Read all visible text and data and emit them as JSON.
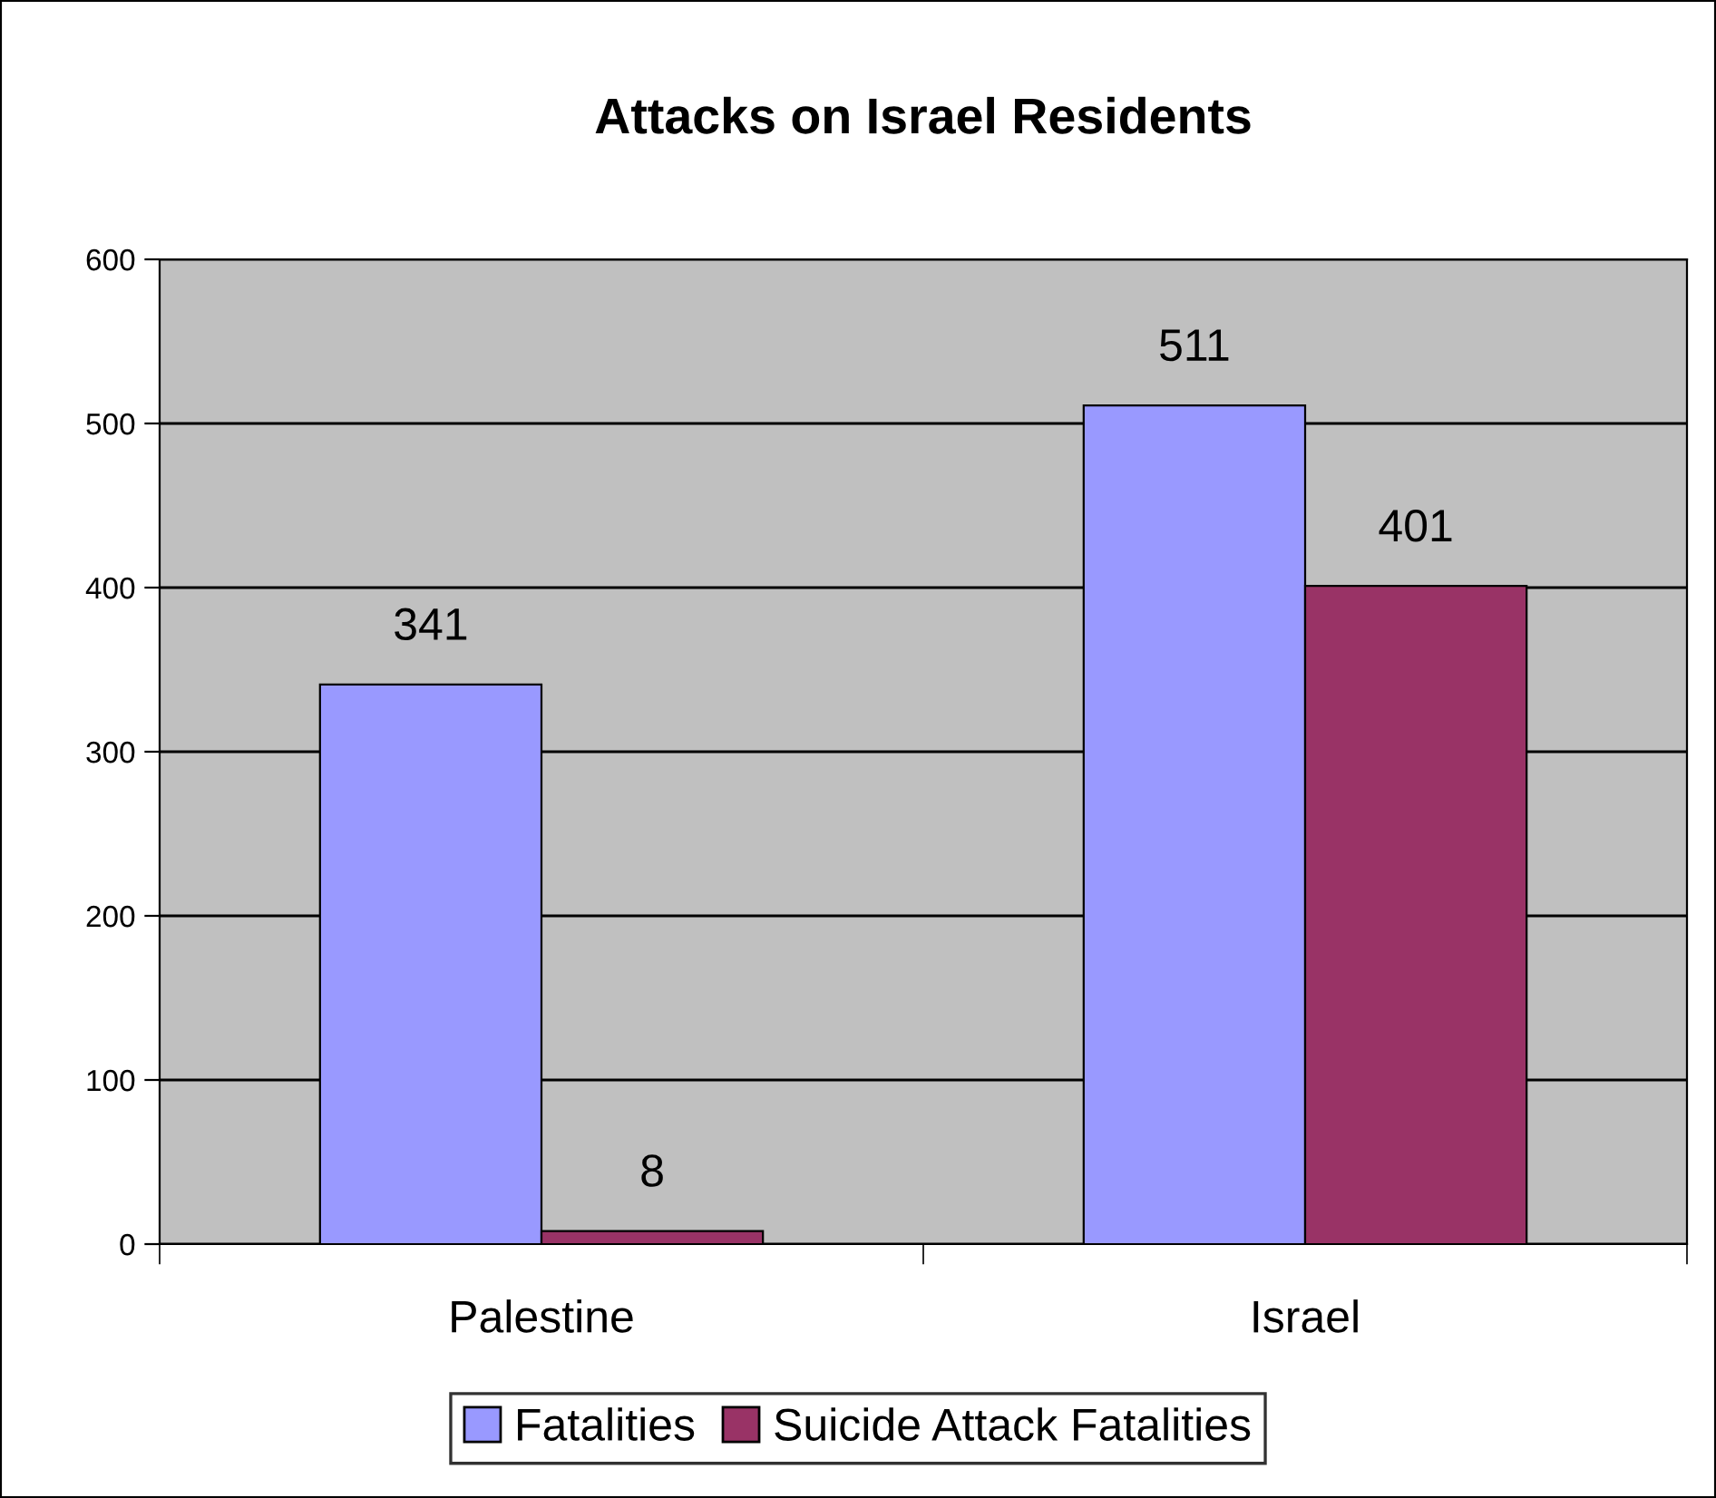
{
  "chart_data": {
    "type": "bar",
    "title": "Attacks on Israel Residents",
    "categories": [
      "Palestine",
      "Israel"
    ],
    "series": [
      {
        "name": "Fatalities",
        "color": "#9999ff",
        "values": [
          341,
          511
        ]
      },
      {
        "name": "Suicide Attack Fatalities",
        "color": "#993366",
        "values": [
          8,
          401
        ]
      }
    ],
    "ylim": [
      0,
      600
    ],
    "yticks": [
      0,
      100,
      200,
      300,
      400,
      500,
      600
    ],
    "grid": "y",
    "legend": "bottom",
    "data_labels": true
  }
}
